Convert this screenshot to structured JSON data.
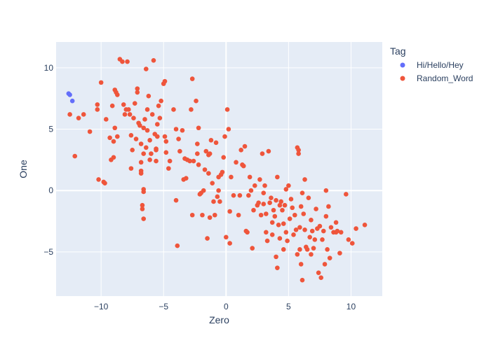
{
  "chart_data": {
    "type": "scatter",
    "title": "",
    "xlabel": "Zero",
    "ylabel": "One",
    "xlim": [
      -13.6,
      12.5
    ],
    "ylim": [
      -8.6,
      12.1
    ],
    "xticks": [
      -10,
      -5,
      0,
      5,
      10
    ],
    "xtick_labels": [
      "−10",
      "−5",
      "0",
      "5",
      "10"
    ],
    "yticks": [
      -5,
      0,
      5,
      10
    ],
    "ytick_labels": [
      "−5",
      "0",
      "5",
      "10"
    ],
    "grid": true,
    "background": "#e5ecf6",
    "legend": {
      "title": "Tag",
      "position": "top-right"
    },
    "series": [
      {
        "name": "Hi/Hello/Hey",
        "color": "#636efa",
        "points": [
          [
            -12.6,
            7.9
          ],
          [
            -12.5,
            7.8
          ],
          [
            -12.3,
            7.3
          ]
        ]
      },
      {
        "name": "Random_Word",
        "color": "#ef553b",
        "points": [
          [
            -12.5,
            6.2
          ],
          [
            -12.1,
            2.8
          ],
          [
            -11.8,
            5.9
          ],
          [
            -11.4,
            6.2
          ],
          [
            -10.9,
            4.8
          ],
          [
            -10.3,
            7.0
          ],
          [
            -10.3,
            6.6
          ],
          [
            -10.2,
            0.9
          ],
          [
            -10.0,
            8.8
          ],
          [
            -9.8,
            0.7
          ],
          [
            -9.7,
            0.6
          ],
          [
            -9.6,
            5.8
          ],
          [
            -9.3,
            4.3
          ],
          [
            -9.1,
            6.9
          ],
          [
            -9.2,
            2.5
          ],
          [
            -9.0,
            2.7
          ],
          [
            -9.0,
            4.0
          ],
          [
            -8.9,
            5.1
          ],
          [
            -8.9,
            8.2
          ],
          [
            -8.8,
            8.0
          ],
          [
            -8.7,
            7.8
          ],
          [
            -8.7,
            4.4
          ],
          [
            -8.5,
            10.7
          ],
          [
            -8.3,
            10.5
          ],
          [
            -8.2,
            7.0
          ],
          [
            -8.1,
            6.2
          ],
          [
            -8.0,
            6.6
          ],
          [
            -7.9,
            10.5
          ],
          [
            -7.8,
            6.6
          ],
          [
            -7.7,
            6.2
          ],
          [
            -7.6,
            4.5
          ],
          [
            -7.6,
            1.8
          ],
          [
            -7.5,
            3.3
          ],
          [
            -7.4,
            5.9
          ],
          [
            -7.3,
            7.1
          ],
          [
            -7.2,
            4.2
          ],
          [
            -7.1,
            8.3
          ],
          [
            -7.1,
            8.0
          ],
          [
            -7.0,
            5.5
          ],
          [
            -6.9,
            5.3
          ],
          [
            -6.8,
            3.8
          ],
          [
            -6.8,
            2.3
          ],
          [
            -6.8,
            1.6
          ],
          [
            -6.8,
            1.4
          ],
          [
            -6.7,
            -1.2
          ],
          [
            -6.7,
            -1.5
          ],
          [
            -6.6,
            -2.3
          ],
          [
            -6.6,
            0.1
          ],
          [
            -6.6,
            -0.1
          ],
          [
            -6.6,
            3.0
          ],
          [
            -6.6,
            5.1
          ],
          [
            -6.5,
            5.8
          ],
          [
            -6.4,
            9.9
          ],
          [
            -6.4,
            3.5
          ],
          [
            -6.3,
            6.6
          ],
          [
            -6.3,
            4.9
          ],
          [
            -6.2,
            7.7
          ],
          [
            -6.1,
            2.5
          ],
          [
            -6.1,
            4.1
          ],
          [
            -6.0,
            3.0
          ],
          [
            -5.9,
            6.2
          ],
          [
            -5.8,
            10.6
          ],
          [
            -5.7,
            4.6
          ],
          [
            -5.6,
            2.4
          ],
          [
            -5.6,
            3.4
          ],
          [
            -5.6,
            3.3
          ],
          [
            -5.5,
            4.4
          ],
          [
            -5.5,
            5.4
          ],
          [
            -5.4,
            6.9
          ],
          [
            -5.3,
            5.9
          ],
          [
            -5.2,
            7.3
          ],
          [
            -5.0,
            8.7
          ],
          [
            -4.9,
            8.9
          ],
          [
            -4.9,
            4.4
          ],
          [
            -4.8,
            3.1
          ],
          [
            -4.8,
            4.0
          ],
          [
            -4.6,
            1.8
          ],
          [
            -4.5,
            2.4
          ],
          [
            -4.2,
            6.6
          ],
          [
            -4.0,
            5.0
          ],
          [
            -4.0,
            -0.8
          ],
          [
            -3.9,
            -4.5
          ],
          [
            -3.8,
            4.2
          ],
          [
            -3.7,
            3.2
          ],
          [
            -3.5,
            4.9
          ],
          [
            -3.4,
            0.9
          ],
          [
            -3.3,
            2.6
          ],
          [
            -3.2,
            1.0
          ],
          [
            -3.1,
            2.5
          ],
          [
            -2.9,
            2.4
          ],
          [
            -2.8,
            6.6
          ],
          [
            -2.7,
            9.1
          ],
          [
            -2.7,
            -2.0
          ],
          [
            -2.6,
            2.4
          ],
          [
            -2.4,
            7.3
          ],
          [
            -2.3,
            3.8
          ],
          [
            -2.3,
            3.0
          ],
          [
            -2.2,
            2.1
          ],
          [
            -2.2,
            5.1
          ],
          [
            -2.1,
            -0.3
          ],
          [
            -2.0,
            -0.2
          ],
          [
            -1.9,
            -2.0
          ],
          [
            -1.8,
            0.0
          ],
          [
            -1.7,
            1.7
          ],
          [
            -1.6,
            3.2
          ],
          [
            -1.5,
            -3.9
          ],
          [
            -1.4,
            1.4
          ],
          [
            -1.4,
            2.9
          ],
          [
            -1.3,
            -2.2
          ],
          [
            -1.3,
            3.0
          ],
          [
            -1.2,
            4.1
          ],
          [
            -1.1,
            0.6
          ],
          [
            -1.0,
            -0.9
          ],
          [
            -0.9,
            -2.0
          ],
          [
            -0.8,
            3.9
          ],
          [
            -0.7,
            -0.5
          ],
          [
            -0.6,
            0.0
          ],
          [
            -0.6,
            1.1
          ],
          [
            -0.5,
            -0.9
          ],
          [
            -0.4,
            1.3
          ],
          [
            -0.3,
            1.5
          ],
          [
            -0.2,
            2.7
          ],
          [
            -0.1,
            4.4
          ],
          [
            0.0,
            -3.8
          ],
          [
            0.1,
            6.6
          ],
          [
            0.2,
            5.0
          ],
          [
            0.3,
            -1.7
          ],
          [
            0.3,
            -4.3
          ],
          [
            0.4,
            1.1
          ],
          [
            0.6,
            -0.4
          ],
          [
            0.8,
            2.3
          ],
          [
            1.0,
            -2.0
          ],
          [
            1.1,
            -0.4
          ],
          [
            1.2,
            3.3
          ],
          [
            1.3,
            2.1
          ],
          [
            1.4,
            2.0
          ],
          [
            1.5,
            3.6
          ],
          [
            1.6,
            -3.3
          ],
          [
            1.7,
            -3.4
          ],
          [
            1.8,
            -0.4
          ],
          [
            1.9,
            1.1
          ],
          [
            2.0,
            0.0
          ],
          [
            2.1,
            -4.7
          ],
          [
            2.2,
            -1.6
          ],
          [
            2.3,
            0.4
          ],
          [
            2.5,
            -1.2
          ],
          [
            2.6,
            -1.0
          ],
          [
            2.7,
            0.9
          ],
          [
            2.8,
            -2.0
          ],
          [
            2.9,
            3.0
          ],
          [
            3.0,
            -0.2
          ],
          [
            3.0,
            -1.1
          ],
          [
            3.1,
            0.4
          ],
          [
            3.2,
            -1.9
          ],
          [
            3.2,
            -3.4
          ],
          [
            3.3,
            -4.1
          ],
          [
            3.4,
            3.2
          ],
          [
            3.5,
            -1.0
          ],
          [
            3.6,
            -0.6
          ],
          [
            3.7,
            -2.6
          ],
          [
            3.7,
            -3.6
          ],
          [
            3.8,
            -1.6
          ],
          [
            3.9,
            -2.1
          ],
          [
            4.0,
            -5.4
          ],
          [
            4.0,
            -0.8
          ],
          [
            4.1,
            1.1
          ],
          [
            4.1,
            -6.3
          ],
          [
            4.2,
            -2.8
          ],
          [
            4.3,
            -3.9
          ],
          [
            4.3,
            -1.2
          ],
          [
            4.4,
            -0.9
          ],
          [
            4.5,
            -1.6
          ],
          [
            4.6,
            -2.7
          ],
          [
            4.6,
            -4.8
          ],
          [
            4.7,
            -1.2
          ],
          [
            4.8,
            -3.4
          ],
          [
            4.8,
            0.1
          ],
          [
            4.9,
            -4.1
          ],
          [
            5.0,
            0.4
          ],
          [
            5.1,
            -2.3
          ],
          [
            5.2,
            -0.7
          ],
          [
            5.3,
            -1.4
          ],
          [
            5.4,
            -3.6
          ],
          [
            5.5,
            -2.0
          ],
          [
            5.6,
            -3.2
          ],
          [
            5.7,
            -5.2
          ],
          [
            5.7,
            3.5
          ],
          [
            5.8,
            3.3
          ],
          [
            5.8,
            3.0
          ],
          [
            5.9,
            -4.8
          ],
          [
            5.9,
            -3.0
          ],
          [
            6.0,
            -6.0
          ],
          [
            6.0,
            -1.3
          ],
          [
            6.1,
            -0.2
          ],
          [
            6.1,
            -7.3
          ],
          [
            6.2,
            -1.9
          ],
          [
            6.3,
            0.9
          ],
          [
            6.3,
            -3.2
          ],
          [
            6.4,
            -4.6
          ],
          [
            6.5,
            -4.8
          ],
          [
            6.6,
            -0.6
          ],
          [
            6.7,
            -3.8
          ],
          [
            6.8,
            -2.4
          ],
          [
            6.8,
            -5.2
          ],
          [
            6.9,
            -3.3
          ],
          [
            7.0,
            -4.7
          ],
          [
            7.1,
            -4.0
          ],
          [
            7.2,
            -1.5
          ],
          [
            7.3,
            -3.1
          ],
          [
            7.4,
            -6.7
          ],
          [
            7.5,
            -2.9
          ],
          [
            7.6,
            -7.1
          ],
          [
            7.7,
            -4.0
          ],
          [
            7.8,
            -3.3
          ],
          [
            7.9,
            -6.0
          ],
          [
            8.0,
            -2.1
          ],
          [
            8.0,
            0.0
          ],
          [
            8.1,
            -4.8
          ],
          [
            8.2,
            -1.3
          ],
          [
            8.3,
            -5.5
          ],
          [
            8.4,
            -3.0
          ],
          [
            8.6,
            -3.4
          ],
          [
            8.8,
            -3.4
          ],
          [
            8.8,
            -2.6
          ],
          [
            8.9,
            -3.3
          ],
          [
            9.1,
            -5.1
          ],
          [
            9.2,
            -3.4
          ],
          [
            9.6,
            -0.3
          ],
          [
            9.8,
            -4.0
          ],
          [
            10.1,
            -4.3
          ],
          [
            10.4,
            -3.1
          ],
          [
            11.1,
            -2.8
          ]
        ]
      }
    ]
  }
}
